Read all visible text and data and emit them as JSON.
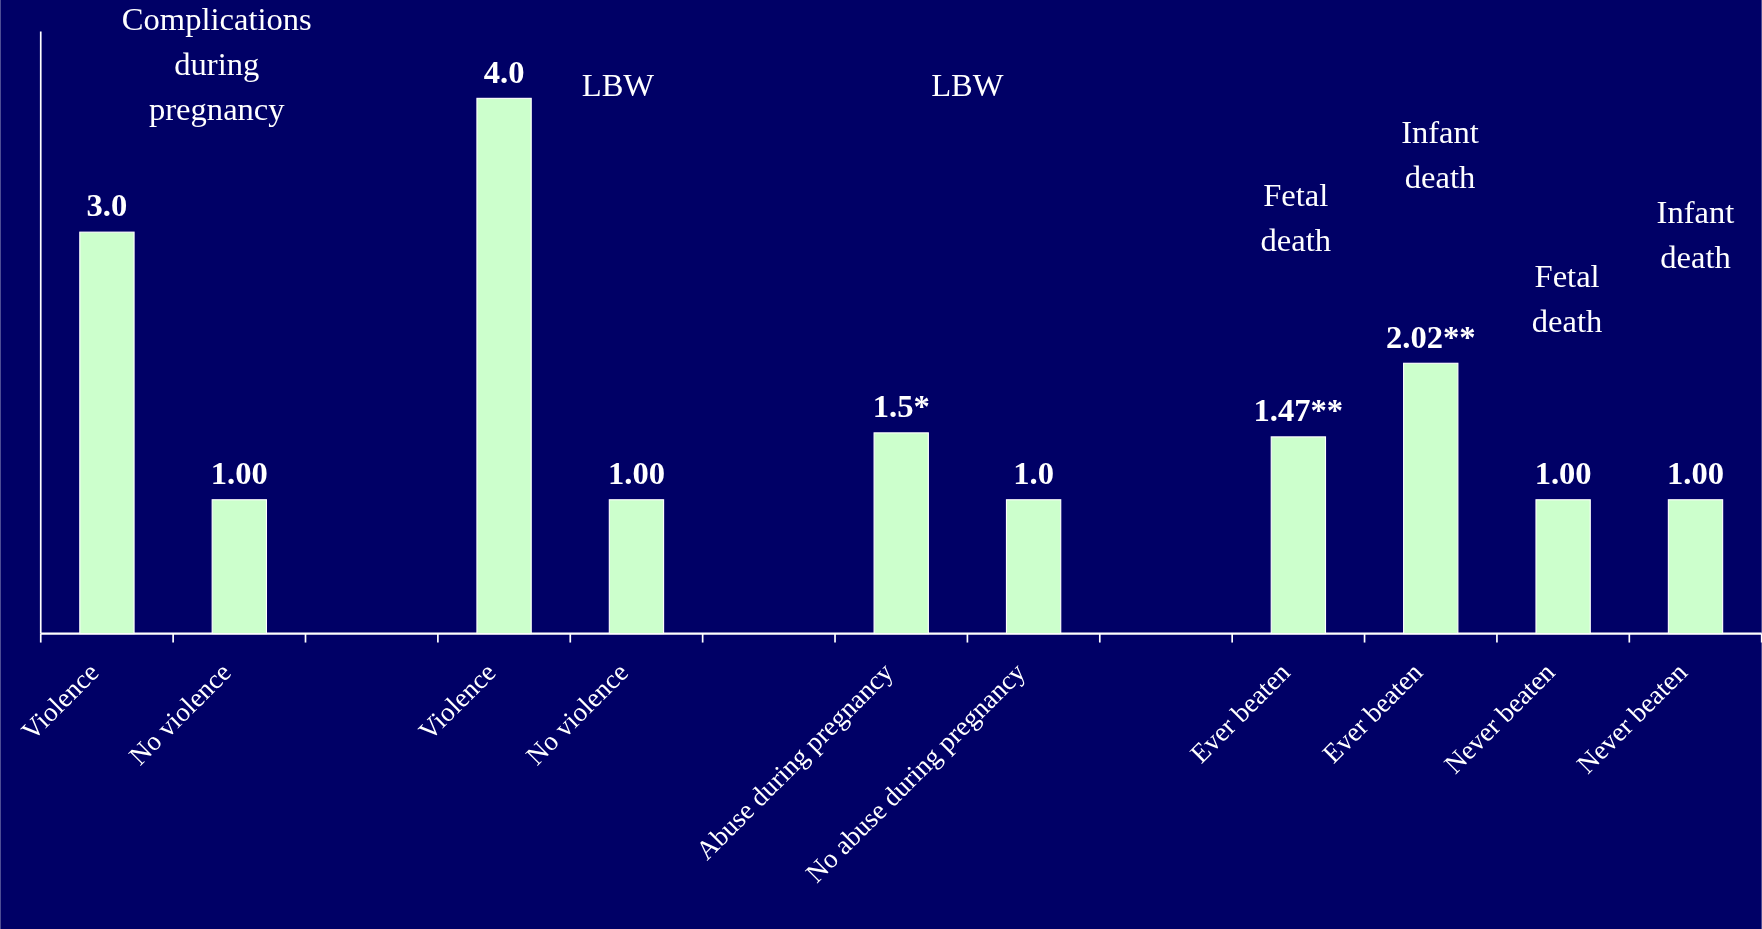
{
  "chart_data": {
    "type": "bar",
    "categories": [
      "Violence",
      "No violence",
      null,
      "Violence",
      "No violence",
      null,
      "Abuse during pregnancy",
      "No abuse during pregnancy",
      null,
      "Ever beaten",
      "Ever beaten",
      "Never beaten",
      "Never beaten"
    ],
    "values": [
      3.0,
      1.0,
      null,
      4.0,
      1.0,
      null,
      1.5,
      1.0,
      null,
      1.47,
      2.02,
      1.0,
      1.0
    ],
    "value_labels": [
      "3.0",
      "1.00",
      null,
      "4.0",
      "1.00",
      null,
      "1.5*",
      "1.0",
      null,
      "1.47**",
      "2.02**",
      "1.00",
      "1.00"
    ],
    "color": "#ccffcc",
    "ylim": [
      0,
      4.5
    ],
    "tick_labels": "x",
    "annotations": [
      "Complications during pregnancy",
      "LBW",
      "LBW",
      "Fetal death",
      "Infant death",
      "Fetal death",
      "Infant death"
    ]
  }
}
